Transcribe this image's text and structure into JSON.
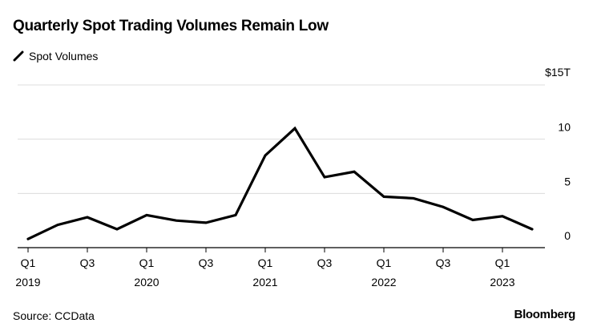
{
  "title": "Quarterly Spot Trading Volumes Remain Low",
  "source": "Source: CCData",
  "logo": "Bloomberg",
  "chart_data": {
    "type": "line",
    "title": "Quarterly Spot Trading Volumes Remain Low",
    "legend_position": "top-left",
    "grid": true,
    "series": [
      {
        "name": "Spot Volumes",
        "color": "#000000",
        "values": [
          0.8,
          2.1,
          2.8,
          1.7,
          3.0,
          2.5,
          2.3,
          3.0,
          8.5,
          11.0,
          6.5,
          7.0,
          4.7,
          4.55,
          3.75,
          2.55,
          2.9,
          1.7
        ]
      }
    ],
    "x": [
      "Q1 2019",
      "Q2 2019",
      "Q3 2019",
      "Q4 2019",
      "Q1 2020",
      "Q2 2020",
      "Q3 2020",
      "Q4 2020",
      "Q1 2021",
      "Q2 2021",
      "Q3 2021",
      "Q4 2021",
      "Q1 2022",
      "Q2 2022",
      "Q3 2022",
      "Q4 2022",
      "Q1 2023",
      "Q2 2023"
    ],
    "x_tick_labels": [
      {
        "q": "Q1",
        "year": "2019",
        "index": 0
      },
      {
        "q": "Q3",
        "year": "",
        "index": 2
      },
      {
        "q": "Q1",
        "year": "2020",
        "index": 4
      },
      {
        "q": "Q3",
        "year": "",
        "index": 6
      },
      {
        "q": "Q1",
        "year": "2021",
        "index": 8
      },
      {
        "q": "Q3",
        "year": "",
        "index": 10
      },
      {
        "q": "Q1",
        "year": "2022",
        "index": 12
      },
      {
        "q": "Q3",
        "year": "",
        "index": 14
      },
      {
        "q": "Q1",
        "year": "2023",
        "index": 16
      }
    ],
    "y_ticks": [
      {
        "value": 0,
        "label": "0"
      },
      {
        "value": 5,
        "label": "5"
      },
      {
        "value": 10,
        "label": "10"
      },
      {
        "value": 15,
        "label": "$15T"
      }
    ],
    "ylim": [
      0,
      15
    ],
    "y_axis_side": "right",
    "ylabel": "",
    "xlabel": ""
  }
}
